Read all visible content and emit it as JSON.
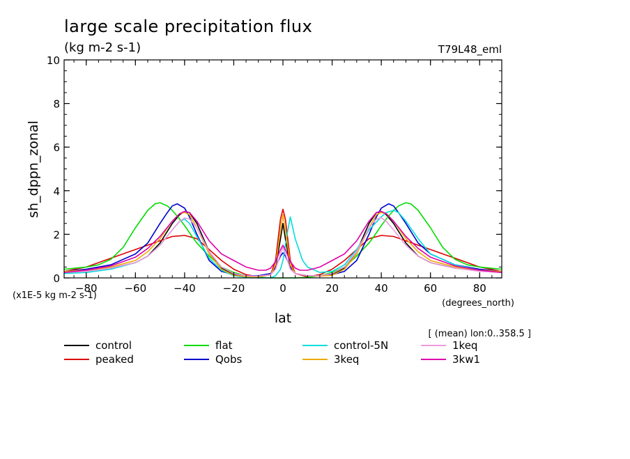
{
  "chart_data": {
    "type": "line",
    "title": "large scale precipitation flux",
    "subtitle": "(kg m-2 s-1)",
    "run_label": "T79L48_eml",
    "xlabel": "lat",
    "x_units": "(degrees_north)",
    "ylabel": "sh_dppn_zonal",
    "y_scale_note": "(x1E-5 kg m-2 s-1)",
    "footnote": "[ (mean) lon:0..358.5 ]",
    "xlim": [
      -89,
      89
    ],
    "ylim": [
      0,
      10
    ],
    "x_ticks": [
      -80,
      -60,
      -40,
      -20,
      0,
      20,
      40,
      60,
      80
    ],
    "y_ticks": [
      0,
      2,
      4,
      6,
      8,
      10
    ],
    "legend_position": "bottom",
    "series": [
      {
        "name": "control",
        "color": "#000000",
        "x": [
          -89,
          -80,
          -70,
          -60,
          -55,
          -50,
          -45,
          -42,
          -40,
          -38,
          -35,
          -30,
          -25,
          -20,
          -15,
          -10,
          -5,
          -3,
          -1,
          0,
          1,
          3,
          5,
          10,
          15,
          20,
          25,
          30,
          35,
          38,
          40,
          42,
          45,
          50,
          55,
          60,
          70,
          80,
          89
        ],
        "y": [
          0.3,
          0.35,
          0.45,
          0.7,
          1.0,
          1.6,
          2.5,
          2.9,
          3.05,
          3.0,
          2.5,
          1.2,
          0.45,
          0.15,
          0.08,
          0.06,
          0.15,
          0.5,
          1.8,
          2.5,
          1.8,
          0.5,
          0.2,
          0.1,
          0.1,
          0.15,
          0.45,
          1.2,
          2.5,
          3.0,
          3.05,
          2.9,
          2.5,
          1.6,
          1.0,
          0.7,
          0.45,
          0.35,
          0.3
        ]
      },
      {
        "name": "peaked",
        "color": "#dd0000",
        "x": [
          -89,
          -80,
          -70,
          -60,
          -50,
          -45,
          -40,
          -35,
          -30,
          -25,
          -20,
          -15,
          -10,
          -5,
          -3,
          -1,
          0,
          1,
          3,
          5,
          10,
          15,
          20,
          25,
          30,
          35,
          40,
          45,
          50,
          60,
          70,
          80,
          89
        ],
        "y": [
          0.3,
          0.5,
          0.9,
          1.3,
          1.7,
          1.9,
          1.95,
          1.8,
          1.3,
          0.8,
          0.4,
          0.15,
          0.05,
          0.15,
          0.8,
          2.7,
          3.15,
          2.7,
          0.8,
          0.2,
          0.05,
          0.15,
          0.4,
          0.8,
          1.3,
          1.8,
          1.95,
          1.9,
          1.7,
          1.3,
          0.9,
          0.5,
          0.3
        ]
      },
      {
        "name": "flat",
        "color": "#00dd00",
        "x": [
          -89,
          -80,
          -75,
          -70,
          -65,
          -60,
          -55,
          -52,
          -50,
          -47,
          -45,
          -42,
          -40,
          -37,
          -35,
          -30,
          -25,
          -20,
          -15,
          -10,
          -5,
          0,
          5,
          10,
          15,
          20,
          25,
          30,
          35,
          37,
          40,
          42,
          45,
          47,
          50,
          52,
          55,
          60,
          65,
          70,
          75,
          80,
          89
        ],
        "y": [
          0.4,
          0.5,
          0.6,
          0.85,
          1.4,
          2.3,
          3.1,
          3.4,
          3.45,
          3.3,
          3.1,
          2.7,
          2.4,
          1.9,
          1.6,
          1.0,
          0.5,
          0.25,
          0.1,
          0.03,
          0.0,
          0.0,
          0.0,
          0.03,
          0.1,
          0.25,
          0.5,
          1.0,
          1.6,
          1.9,
          2.4,
          2.7,
          3.1,
          3.3,
          3.45,
          3.4,
          3.1,
          2.3,
          1.4,
          0.85,
          0.6,
          0.5,
          0.4
        ]
      },
      {
        "name": "Qobs",
        "color": "#0000cc",
        "x": [
          -89,
          -80,
          -70,
          -60,
          -55,
          -50,
          -47,
          -45,
          -43,
          -40,
          -38,
          -35,
          -30,
          -25,
          -20,
          -15,
          -10,
          -5,
          -3,
          -1,
          0,
          1,
          3,
          5,
          10,
          15,
          20,
          25,
          30,
          35,
          38,
          40,
          43,
          45,
          47,
          50,
          55,
          60,
          70,
          80,
          89
        ],
        "y": [
          0.3,
          0.4,
          0.6,
          1.1,
          1.6,
          2.5,
          3.0,
          3.3,
          3.4,
          3.2,
          2.8,
          2.0,
          0.8,
          0.3,
          0.15,
          0.1,
          0.1,
          0.2,
          0.5,
          1.0,
          1.15,
          1.0,
          0.5,
          0.2,
          0.1,
          0.1,
          0.15,
          0.3,
          0.8,
          2.0,
          2.8,
          3.2,
          3.4,
          3.3,
          3.0,
          2.5,
          1.6,
          1.1,
          0.6,
          0.4,
          0.3
        ]
      },
      {
        "name": "control-5N",
        "color": "#00dddd",
        "x": [
          -89,
          -80,
          -70,
          -60,
          -55,
          -50,
          -45,
          -42,
          -40,
          -38,
          -35,
          -30,
          -25,
          -20,
          -15,
          -10,
          -5,
          -3,
          -1,
          0,
          1,
          2,
          3,
          5,
          8,
          10,
          15,
          20,
          25,
          30,
          35,
          40,
          42,
          45,
          47,
          50,
          55,
          60,
          70,
          80,
          89
        ],
        "y": [
          0.2,
          0.25,
          0.4,
          0.7,
          1.0,
          1.5,
          2.2,
          2.6,
          2.7,
          2.5,
          1.9,
          0.9,
          0.35,
          0.1,
          0.03,
          0.0,
          0.0,
          0.1,
          0.4,
          0.8,
          1.5,
          2.2,
          2.8,
          1.8,
          0.8,
          0.5,
          0.25,
          0.3,
          0.6,
          1.3,
          2.2,
          2.8,
          3.0,
          3.1,
          3.0,
          2.6,
          1.8,
          1.1,
          0.6,
          0.35,
          0.25
        ]
      },
      {
        "name": "3keq",
        "color": "#eeaa00",
        "x": [
          -89,
          -80,
          -70,
          -60,
          -55,
          -50,
          -45,
          -42,
          -40,
          -38,
          -35,
          -30,
          -25,
          -20,
          -15,
          -10,
          -5,
          -3,
          -1,
          0,
          1,
          3,
          5,
          10,
          15,
          20,
          25,
          30,
          35,
          38,
          40,
          42,
          45,
          50,
          55,
          60,
          70,
          80,
          89
        ],
        "y": [
          0.3,
          0.35,
          0.5,
          0.8,
          1.2,
          1.8,
          2.6,
          2.95,
          3.0,
          2.9,
          2.3,
          1.1,
          0.4,
          0.12,
          0.06,
          0.05,
          0.15,
          0.6,
          2.2,
          2.9,
          2.2,
          0.6,
          0.2,
          0.1,
          0.08,
          0.12,
          0.4,
          1.1,
          2.3,
          2.9,
          3.0,
          2.95,
          2.6,
          1.8,
          1.2,
          0.8,
          0.5,
          0.35,
          0.3
        ]
      },
      {
        "name": "1keq",
        "color": "#ee99dd",
        "x": [
          -89,
          -80,
          -70,
          -60,
          -55,
          -50,
          -45,
          -42,
          -40,
          -38,
          -35,
          -30,
          -25,
          -20,
          -15,
          -10,
          -5,
          -3,
          -1,
          0,
          1,
          3,
          5,
          10,
          15,
          20,
          25,
          30,
          35,
          38,
          40,
          42,
          45,
          50,
          55,
          60,
          70,
          80,
          89
        ],
        "y": [
          0.25,
          0.3,
          0.45,
          0.7,
          1.0,
          1.5,
          2.2,
          2.6,
          2.75,
          2.7,
          2.3,
          1.2,
          0.5,
          0.2,
          0.1,
          0.08,
          0.15,
          0.4,
          1.1,
          1.4,
          1.1,
          0.4,
          0.2,
          0.1,
          0.1,
          0.2,
          0.5,
          1.2,
          2.3,
          2.7,
          2.75,
          2.6,
          2.2,
          1.5,
          1.0,
          0.7,
          0.45,
          0.3,
          0.25
        ]
      },
      {
        "name": "3kw1",
        "color": "#dd00aa",
        "x": [
          -89,
          -80,
          -70,
          -60,
          -55,
          -50,
          -45,
          -42,
          -40,
          -38,
          -35,
          -30,
          -25,
          -20,
          -15,
          -10,
          -7,
          -5,
          -3,
          -1,
          0,
          1,
          3,
          5,
          7,
          10,
          15,
          20,
          25,
          30,
          35,
          38,
          40,
          42,
          45,
          50,
          55,
          60,
          70,
          80,
          89
        ],
        "y": [
          0.25,
          0.35,
          0.55,
          0.95,
          1.35,
          1.9,
          2.6,
          2.95,
          3.05,
          3.0,
          2.6,
          1.7,
          1.1,
          0.8,
          0.5,
          0.35,
          0.35,
          0.45,
          0.75,
          1.3,
          1.5,
          1.3,
          0.75,
          0.45,
          0.35,
          0.35,
          0.5,
          0.8,
          1.1,
          1.7,
          2.6,
          3.0,
          3.05,
          2.95,
          2.6,
          1.9,
          1.35,
          0.95,
          0.55,
          0.35,
          0.25
        ]
      }
    ]
  }
}
